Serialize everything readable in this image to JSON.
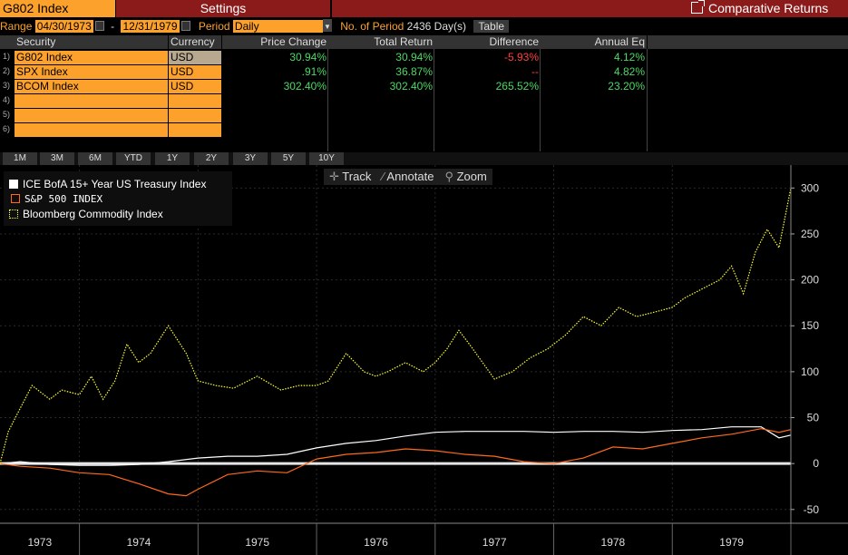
{
  "header": {
    "ticker": "G802 Index",
    "settings_label": "Settings",
    "comparative_label": "Comparative Returns"
  },
  "range": {
    "label": "Range",
    "start": "04/30/1973",
    "dash": "-",
    "end": "12/31/1979",
    "period_label": "Period",
    "period_value": "Daily",
    "no_of_period_label": "No. of Period",
    "no_of_period_value": "2436 Day(s)",
    "table_button": "Table"
  },
  "table": {
    "headers": [
      "Security",
      "Currency",
      "Price Change",
      "Total Return",
      "Difference",
      "Annual Eq"
    ],
    "rows": [
      {
        "n": "1)",
        "security": "G802 Index",
        "currency": "USD",
        "price_change": "30.94%",
        "total_return": "30.94%",
        "difference": "-5.93%",
        "annual_eq": "4.12%"
      },
      {
        "n": "2)",
        "security": "SPX Index",
        "currency": "USD",
        "price_change": ".91%",
        "total_return": "36.87%",
        "difference": "--",
        "annual_eq": "4.82%"
      },
      {
        "n": "3)",
        "security": "BCOM Index",
        "currency": "USD",
        "price_change": "302.40%",
        "total_return": "302.40%",
        "difference": "265.52%",
        "annual_eq": "23.20%"
      },
      {
        "n": "4)",
        "security": "",
        "currency": "",
        "price_change": "",
        "total_return": "",
        "difference": "",
        "annual_eq": ""
      },
      {
        "n": "5)",
        "security": "",
        "currency": "",
        "price_change": "",
        "total_return": "",
        "difference": "",
        "annual_eq": ""
      },
      {
        "n": "6)",
        "security": "",
        "currency": "",
        "price_change": "",
        "total_return": "",
        "difference": "",
        "annual_eq": ""
      }
    ]
  },
  "periods": [
    "1M",
    "3M",
    "6M",
    "YTD",
    "1Y",
    "2Y",
    "3Y",
    "5Y",
    "10Y"
  ],
  "tools": {
    "track": "Track",
    "annotate": "Annotate",
    "zoom": "Zoom"
  },
  "chart_data": {
    "type": "line",
    "x_labels": [
      "1973",
      "1974",
      "1975",
      "1976",
      "1977",
      "1978",
      "1979"
    ],
    "y_ticks": [
      300,
      250,
      200,
      150,
      100,
      50,
      0,
      -50
    ],
    "ylim": [
      -65,
      325
    ],
    "grid": true,
    "legend_position": "top-left",
    "series": [
      {
        "name": "ICE BofA 15+ Year US Treasury Index",
        "color": "#ffffff",
        "style": "solid",
        "x": [
          1973.33,
          1973.5,
          1973.75,
          1974.0,
          1974.25,
          1974.5,
          1974.75,
          1975.0,
          1975.25,
          1975.5,
          1975.75,
          1976.0,
          1976.25,
          1976.5,
          1976.75,
          1977.0,
          1977.25,
          1977.5,
          1977.75,
          1978.0,
          1978.25,
          1978.5,
          1978.75,
          1979.0,
          1979.25,
          1979.5,
          1979.75,
          1979.9,
          1980.0
        ],
        "y": [
          0,
          2,
          -1,
          -2,
          -2,
          -1,
          2,
          6,
          8,
          8,
          10,
          17,
          22,
          25,
          30,
          34,
          35,
          35,
          35,
          34,
          35,
          35,
          34,
          36,
          37,
          40,
          40,
          28,
          31
        ]
      },
      {
        "name": "S&P 500 INDEX",
        "color": "#ff6a1a",
        "style": "solid",
        "x": [
          1973.33,
          1973.5,
          1973.75,
          1974.0,
          1974.25,
          1974.5,
          1974.75,
          1974.9,
          1975.0,
          1975.25,
          1975.5,
          1975.75,
          1976.0,
          1976.25,
          1976.5,
          1976.75,
          1977.0,
          1977.25,
          1977.5,
          1977.75,
          1978.0,
          1978.25,
          1978.5,
          1978.75,
          1979.0,
          1979.25,
          1979.5,
          1979.75,
          1979.9,
          1980.0
        ],
        "y": [
          0,
          -3,
          -5,
          -10,
          -12,
          -22,
          -33,
          -35,
          -28,
          -12,
          -8,
          -10,
          5,
          10,
          12,
          16,
          14,
          10,
          8,
          2,
          0,
          6,
          18,
          16,
          22,
          28,
          32,
          38,
          34,
          37
        ]
      },
      {
        "name": "Bloomberg Commodity Index",
        "color": "#ffff33",
        "style": "dotted",
        "x": [
          1973.33,
          1973.4,
          1973.5,
          1973.6,
          1973.75,
          1973.85,
          1974.0,
          1974.1,
          1974.2,
          1974.3,
          1974.4,
          1974.5,
          1974.6,
          1974.75,
          1974.9,
          1975.0,
          1975.15,
          1975.3,
          1975.5,
          1975.7,
          1975.85,
          1976.0,
          1976.1,
          1976.25,
          1976.4,
          1976.5,
          1976.6,
          1976.75,
          1976.9,
          1977.0,
          1977.1,
          1977.2,
          1977.3,
          1977.4,
          1977.5,
          1977.65,
          1977.8,
          1977.95,
          1978.1,
          1978.25,
          1978.4,
          1978.55,
          1978.7,
          1978.85,
          1979.0,
          1979.1,
          1979.25,
          1979.4,
          1979.5,
          1979.6,
          1979.7,
          1979.8,
          1979.9,
          1980.0
        ],
        "y": [
          0,
          35,
          60,
          85,
          70,
          80,
          75,
          95,
          70,
          90,
          130,
          110,
          120,
          150,
          120,
          90,
          85,
          82,
          95,
          80,
          85,
          85,
          90,
          120,
          100,
          95,
          100,
          110,
          100,
          110,
          125,
          145,
          128,
          110,
          92,
          100,
          115,
          125,
          140,
          160,
          150,
          170,
          160,
          165,
          170,
          180,
          190,
          200,
          215,
          185,
          230,
          255,
          235,
          300
        ]
      }
    ]
  }
}
